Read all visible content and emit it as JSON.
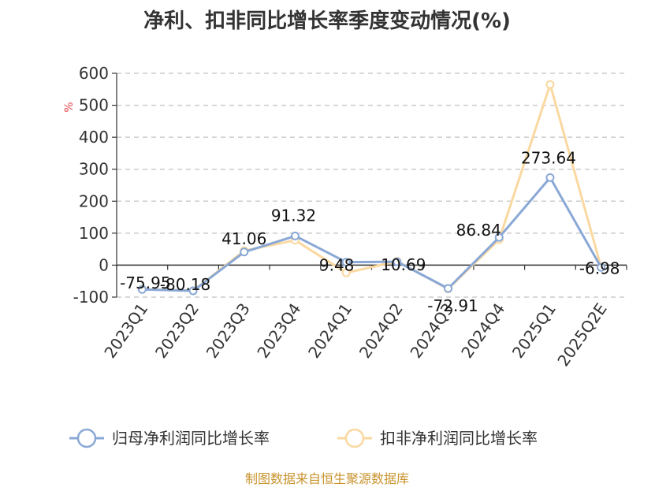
{
  "chart_data": {
    "type": "line",
    "title": "净利、扣非同比增长率季度变动情况(%)",
    "ylabel": "%",
    "ylim": [
      -100,
      600
    ],
    "yticks": [
      -100,
      0,
      100,
      200,
      300,
      400,
      500,
      600
    ],
    "categories": [
      "2023Q1",
      "2023Q2",
      "2023Q3",
      "2023Q4",
      "2024Q1",
      "2024Q2",
      "2024Q3",
      "2024Q4",
      "2025Q1",
      "2025Q2E"
    ],
    "grid": true,
    "legend_position": "bottom",
    "series": [
      {
        "name": "归母净利润同比增长率",
        "color": "#8aa8d6",
        "values": [
          -75.95,
          -80.18,
          41.06,
          91.32,
          9.48,
          10.69,
          -72.91,
          86.84,
          273.64,
          -6.98
        ],
        "labels": [
          "-75.95",
          "-80.18",
          "41.06",
          "91.32",
          "9.48",
          "10.69",
          "-72.91",
          "86.84",
          "273.64",
          "-6.98"
        ]
      },
      {
        "name": "扣非净利润同比增长率",
        "color": "#fad8a0",
        "values": [
          -75,
          -80,
          45,
          78,
          -24,
          12,
          -74,
          80,
          565,
          -6
        ]
      }
    ]
  },
  "source_text": "制图数据来自恒生聚源数据库"
}
